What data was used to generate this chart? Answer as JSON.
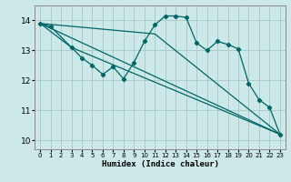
{
  "background_color": "#cce8e8",
  "grid_color": "#aacccc",
  "line_color": "#006666",
  "xlabel": "Humidex (Indice chaleur)",
  "xlim": [
    -0.5,
    23.5
  ],
  "ylim": [
    9.7,
    14.5
  ],
  "yticks": [
    10,
    11,
    12,
    13,
    14
  ],
  "xticks": [
    0,
    1,
    2,
    3,
    4,
    5,
    6,
    7,
    8,
    9,
    10,
    11,
    12,
    13,
    14,
    15,
    16,
    17,
    18,
    19,
    20,
    21,
    22,
    23
  ],
  "series": [
    [
      0,
      13.9
    ],
    [
      1,
      13.8
    ],
    [
      3,
      13.1
    ],
    [
      4,
      12.75
    ],
    [
      5,
      12.5
    ],
    [
      6,
      12.2
    ],
    [
      7,
      12.45
    ],
    [
      8,
      12.05
    ],
    [
      9,
      12.6
    ],
    [
      10,
      13.3
    ],
    [
      11,
      13.85
    ],
    [
      12,
      14.15
    ],
    [
      13,
      14.15
    ],
    [
      14,
      14.1
    ],
    [
      15,
      13.25
    ],
    [
      16,
      13.0
    ],
    [
      17,
      13.3
    ],
    [
      18,
      13.2
    ],
    [
      19,
      13.05
    ],
    [
      20,
      11.9
    ],
    [
      21,
      11.35
    ],
    [
      22,
      11.1
    ],
    [
      23,
      10.2
    ]
  ],
  "line_straight": [
    [
      0,
      13.9
    ],
    [
      23,
      10.2
    ]
  ],
  "line_upper": [
    [
      0,
      13.9
    ],
    [
      11,
      13.55
    ],
    [
      23,
      10.2
    ]
  ],
  "line_lower": [
    [
      0,
      13.9
    ],
    [
      3,
      13.1
    ],
    [
      23,
      10.2
    ]
  ]
}
